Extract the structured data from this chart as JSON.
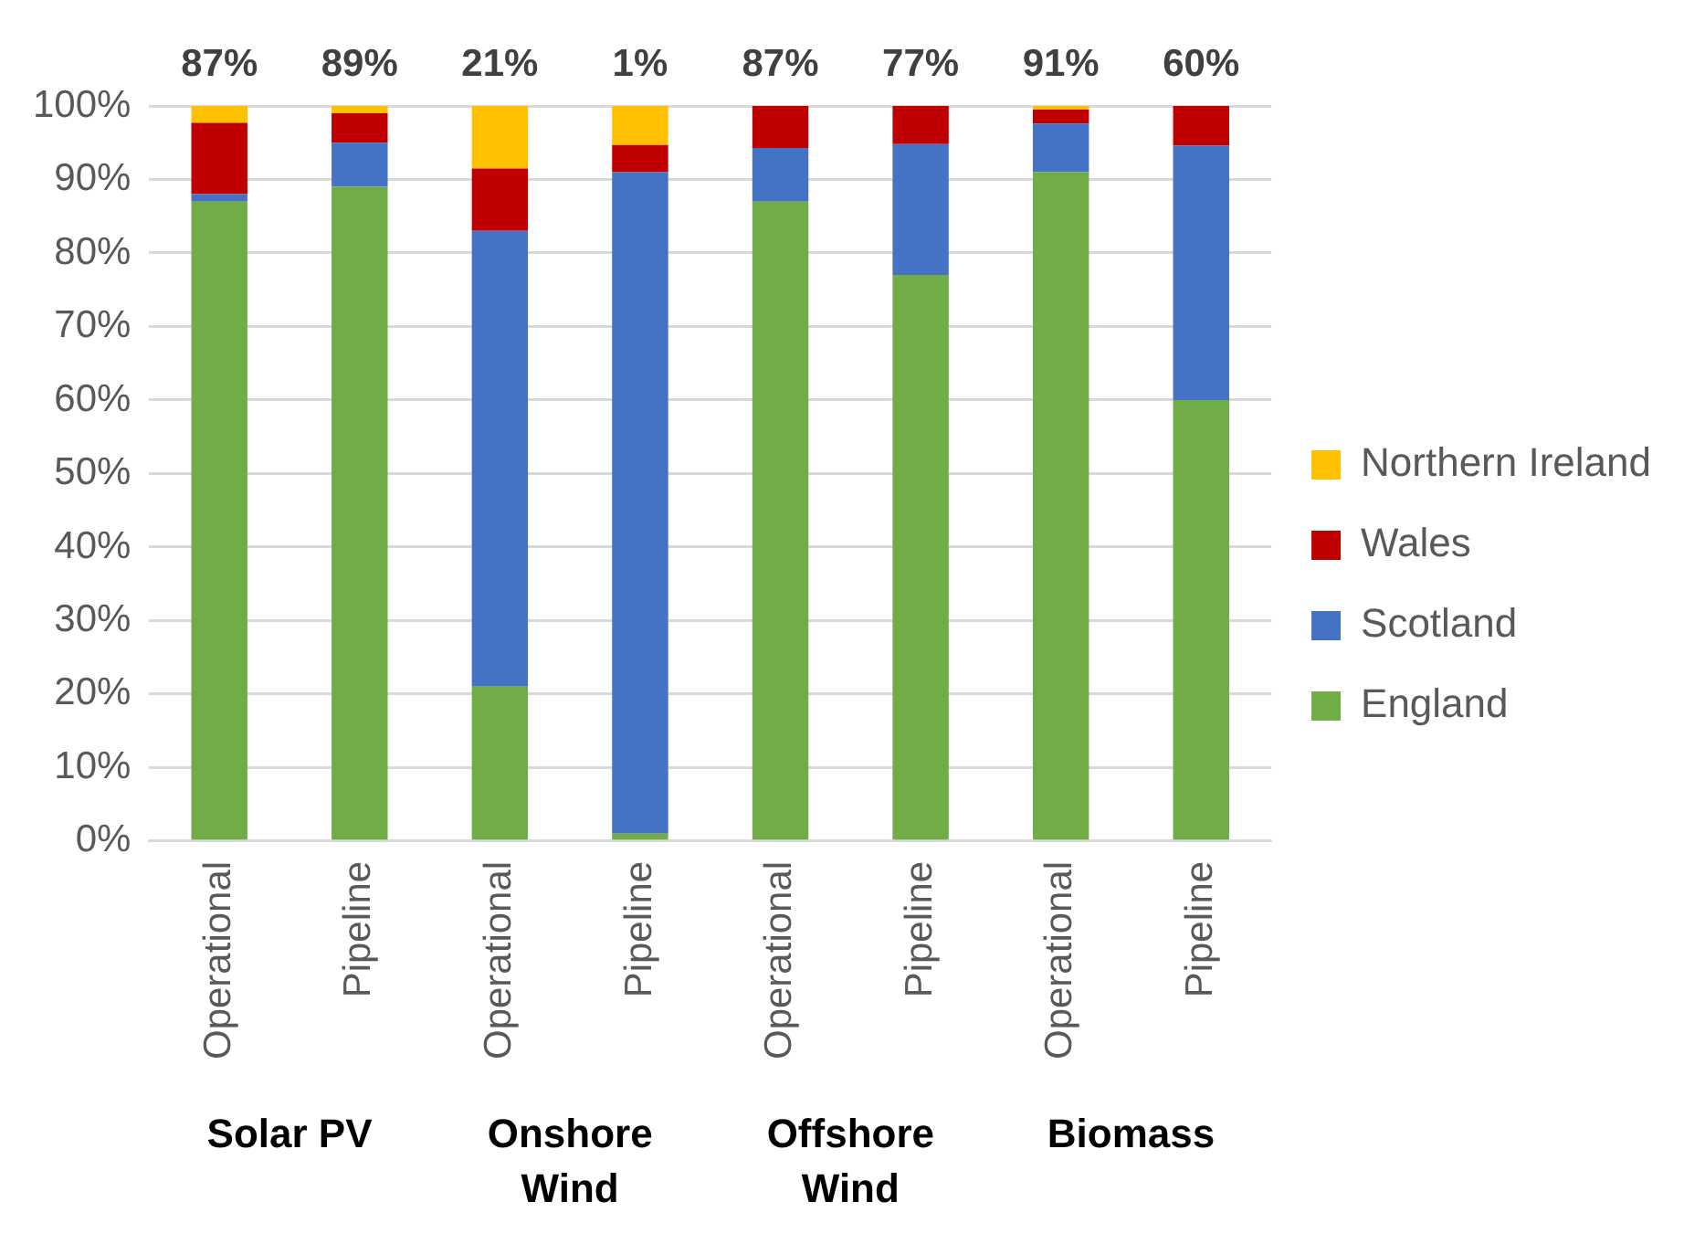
{
  "chart_data": {
    "type": "bar",
    "stacked": true,
    "categories": [
      "Operational",
      "Pipeline",
      "Operational",
      "Pipeline",
      "Operational",
      "Pipeline",
      "Operational",
      "Pipeline"
    ],
    "series": [
      {
        "name": "England",
        "color": "#70ad47",
        "values": [
          87,
          89,
          21,
          1,
          87,
          77,
          91,
          60
        ]
      },
      {
        "name": "Scotland",
        "color": "#4472c4",
        "values": [
          1,
          6,
          62,
          90,
          7.3,
          17.8,
          6.6,
          34.6
        ]
      },
      {
        "name": "Wales",
        "color": "#c00000",
        "values": [
          9.7,
          4,
          8.5,
          3.7,
          5.7,
          5.2,
          1.9,
          5.4
        ]
      },
      {
        "name": "Northern Ireland",
        "color": "#ffc000",
        "values": [
          2.3,
          1,
          8.5,
          5.3,
          0,
          0,
          0.5,
          0
        ]
      }
    ],
    "ylim": [
      0,
      100
    ],
    "yticks": [
      {
        "value": 0,
        "label": "0%"
      },
      {
        "value": 10,
        "label": "10%"
      },
      {
        "value": 20,
        "label": "20%"
      },
      {
        "value": 30,
        "label": "30%"
      },
      {
        "value": 40,
        "label": "40%"
      },
      {
        "value": 50,
        "label": "50%"
      },
      {
        "value": 60,
        "label": "60%"
      },
      {
        "value": 70,
        "label": "70%"
      },
      {
        "value": 80,
        "label": "80%"
      },
      {
        "value": 90,
        "label": "90%"
      },
      {
        "value": 100,
        "label": "100%"
      }
    ],
    "grid": "y",
    "legend": "right",
    "annotations": [
      "87%",
      "89%",
      "21%",
      "1%",
      "87%",
      "77%",
      "91%",
      "60%",
      "Solar PV",
      "Onshore Wind",
      "Offshore Wind",
      "Biomass"
    ]
  }
}
